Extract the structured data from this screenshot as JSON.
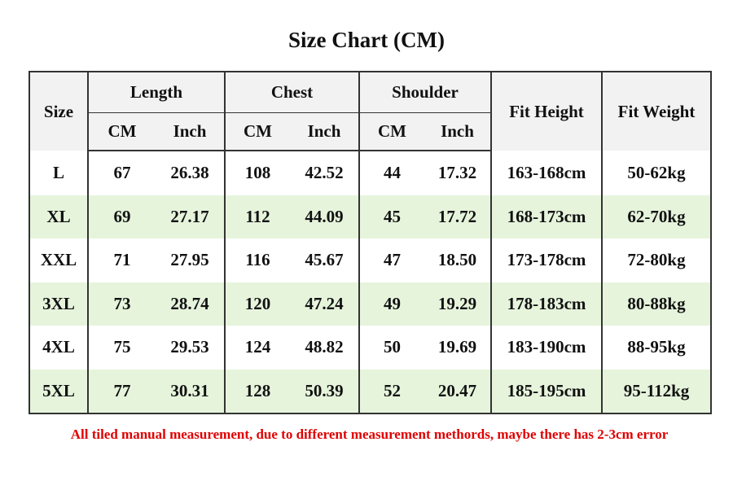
{
  "title": "Size Chart (CM)",
  "table": {
    "columns": [
      "Size",
      "Length",
      "Chest",
      "Shoulder",
      "Fit Height",
      "Fit Weight"
    ],
    "subcolumns": [
      "CM",
      "Inch",
      "CM",
      "Inch",
      "CM",
      "Inch"
    ],
    "rows": [
      [
        "L",
        "67",
        "26.38",
        "108",
        "42.52",
        "44",
        "17.32",
        "163-168cm",
        "50-62kg"
      ],
      [
        "XL",
        "69",
        "27.17",
        "112",
        "44.09",
        "45",
        "17.72",
        "168-173cm",
        "62-70kg"
      ],
      [
        "XXL",
        "71",
        "27.95",
        "116",
        "45.67",
        "47",
        "18.50",
        "173-178cm",
        "72-80kg"
      ],
      [
        "3XL",
        "73",
        "28.74",
        "120",
        "47.24",
        "49",
        "19.29",
        "178-183cm",
        "80-88kg"
      ],
      [
        "4XL",
        "75",
        "29.53",
        "124",
        "48.82",
        "50",
        "19.69",
        "183-190cm",
        "88-95kg"
      ],
      [
        "5XL",
        "77",
        "30.31",
        "128",
        "50.39",
        "52",
        "20.47",
        "185-195cm",
        "95-112kg"
      ]
    ]
  },
  "note": "All tiled manual measurement, due to different measurement methords, maybe there has 2-3cm error"
}
